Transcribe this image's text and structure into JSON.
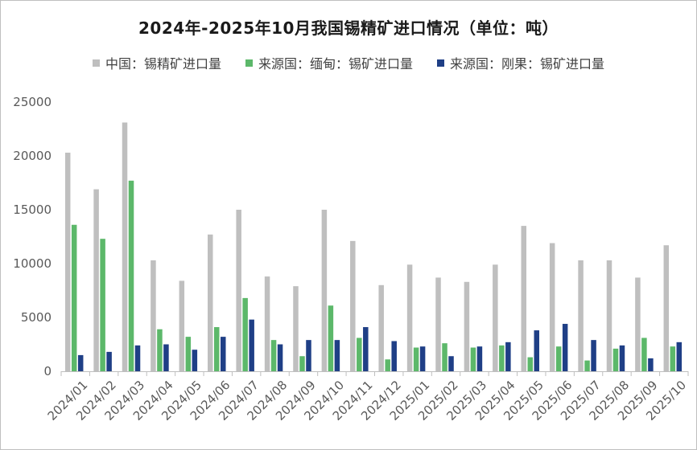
{
  "chart_data": {
    "type": "bar",
    "title": "2024年-2025年10月我国锡精矿进口情况（单位：吨）",
    "categories": [
      "2024/01",
      "2024/02",
      "2024/03",
      "2024/04",
      "2024/05",
      "2024/06",
      "2024/07",
      "2024/08",
      "2024/09",
      "2024/10",
      "2024/11",
      "2024/12",
      "2025/01",
      "2025/02",
      "2025/03",
      "2025/04",
      "2025/05",
      "2025/06",
      "2025/07",
      "2025/08",
      "2025/09",
      "2025/10"
    ],
    "series": [
      {
        "name": "中国：锡精矿进口量",
        "color": "#bfbfbf",
        "values": [
          20300,
          16900,
          23100,
          10300,
          8400,
          12700,
          15000,
          8800,
          7900,
          15000,
          12100,
          8000,
          9900,
          8700,
          8300,
          9900,
          13500,
          11900,
          10300,
          10300,
          8700,
          11700
        ]
      },
      {
        "name": "来源国：缅甸：锡矿进口量",
        "color": "#5cb86a",
        "values": [
          13600,
          12300,
          17700,
          3900,
          3200,
          4100,
          6800,
          2900,
          1400,
          6100,
          3100,
          1100,
          2200,
          2600,
          2200,
          2400,
          1300,
          2300,
          1000,
          2100,
          3100,
          2300
        ]
      },
      {
        "name": "来源国：刚果：锡矿进口量",
        "color": "#1f3f86",
        "values": [
          1500,
          1800,
          2400,
          2500,
          2000,
          3200,
          4800,
          2500,
          2900,
          2900,
          4100,
          2800,
          2300,
          1400,
          2300,
          2700,
          3800,
          4400,
          2900,
          2400,
          1200,
          2700
        ]
      }
    ],
    "yticks": [
      "0",
      "5000",
      "10000",
      "15000",
      "20000",
      "25000"
    ],
    "ylim": [
      0,
      25000
    ],
    "grid": false,
    "legend_position": "top"
  }
}
